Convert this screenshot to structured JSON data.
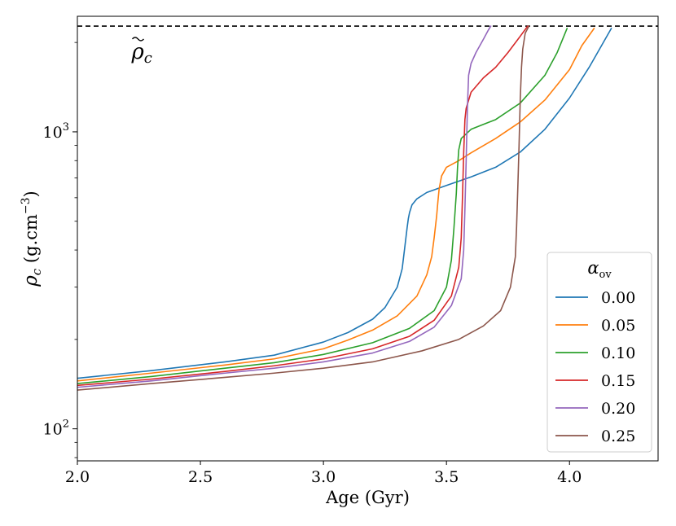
{
  "chart_data": {
    "type": "line",
    "title": "",
    "xlabel": "Age (Gyr)",
    "ylabel_symbol": "ρ",
    "ylabel_sub": "c",
    "ylabel_units_pre": " (g.cm",
    "ylabel_units_exp": "−3",
    "ylabel_units_post": ")",
    "xlim": [
      2.0,
      4.36
    ],
    "ylim": [
      78,
      2450
    ],
    "yscale": "log",
    "grid": false,
    "legend_placement": "lower-right",
    "legend_title": "α",
    "legend_title_sub": "ov",
    "x_ticks": [
      "2.0",
      "2.5",
      "3.0",
      "3.5",
      "4.0"
    ],
    "y_ticks": [
      {
        "base": "10",
        "exp": "2",
        "value": 100
      },
      {
        "base": "10",
        "exp": "3",
        "value": 1000
      }
    ],
    "reference_line": {
      "value": 2270,
      "style": "dashed",
      "color": "#000000"
    },
    "reference_label": {
      "symbol": "ρ",
      "sub": "c",
      "x": 2.22,
      "y": 1880
    },
    "series": [
      {
        "name": "0.00",
        "color": "#1f77b4",
        "x": [
          2.0,
          2.3,
          2.6,
          2.8,
          3.0,
          3.1,
          3.2,
          3.25,
          3.3,
          3.32,
          3.33,
          3.34,
          3.345,
          3.35,
          3.36,
          3.38,
          3.42,
          3.5,
          3.6,
          3.7,
          3.8,
          3.9,
          4.0,
          4.08,
          4.13,
          4.17
        ],
        "y": [
          148,
          157,
          168,
          177,
          196,
          211,
          234,
          256,
          300,
          346,
          405,
          475,
          510,
          535,
          568,
          595,
          625,
          660,
          705,
          760,
          855,
          1020,
          1300,
          1650,
          1950,
          2230
        ]
      },
      {
        "name": "0.05",
        "color": "#ff7f0e",
        "x": [
          2.0,
          2.3,
          2.6,
          2.8,
          3.0,
          3.1,
          3.2,
          3.3,
          3.38,
          3.42,
          3.44,
          3.45,
          3.46,
          3.465,
          3.47,
          3.48,
          3.5,
          3.55,
          3.6,
          3.7,
          3.8,
          3.9,
          4.0,
          4.05,
          4.1
        ],
        "y": [
          145,
          154,
          164,
          172,
          186,
          199,
          215,
          240,
          280,
          330,
          380,
          440,
          520,
          580,
          640,
          710,
          760,
          800,
          850,
          950,
          1080,
          1280,
          1620,
          1950,
          2230
        ]
      },
      {
        "name": "0.10",
        "color": "#2ca02c",
        "x": [
          2.0,
          2.3,
          2.6,
          2.8,
          3.0,
          3.2,
          3.35,
          3.45,
          3.5,
          3.52,
          3.53,
          3.54,
          3.545,
          3.55,
          3.56,
          3.6,
          3.65,
          3.7,
          3.8,
          3.9,
          3.95,
          3.99
        ],
        "y": [
          142,
          150,
          160,
          167,
          178,
          195,
          218,
          250,
          300,
          370,
          470,
          620,
          760,
          870,
          950,
          1020,
          1060,
          1100,
          1250,
          1550,
          1850,
          2230
        ]
      },
      {
        "name": "0.15",
        "color": "#d62728",
        "x": [
          2.0,
          2.3,
          2.6,
          2.8,
          3.0,
          3.2,
          3.35,
          3.45,
          3.52,
          3.55,
          3.56,
          3.565,
          3.57,
          3.575,
          3.58,
          3.6,
          3.65,
          3.7,
          3.75,
          3.8,
          3.83
        ],
        "y": [
          140,
          147,
          156,
          163,
          172,
          186,
          205,
          232,
          280,
          350,
          440,
          600,
          850,
          1100,
          1200,
          1360,
          1520,
          1650,
          1850,
          2100,
          2270
        ]
      },
      {
        "name": "0.20",
        "color": "#9467bd",
        "x": [
          2.0,
          2.3,
          2.6,
          2.8,
          3.0,
          3.2,
          3.35,
          3.45,
          3.52,
          3.56,
          3.57,
          3.575,
          3.58,
          3.585,
          3.59,
          3.6,
          3.62,
          3.65,
          3.67,
          3.68
        ],
        "y": [
          138,
          145,
          154,
          160,
          168,
          180,
          197,
          220,
          260,
          320,
          400,
          550,
          800,
          1200,
          1550,
          1700,
          1850,
          2050,
          2200,
          2270
        ]
      },
      {
        "name": "0.25",
        "color": "#8c564b",
        "x": [
          2.0,
          2.3,
          2.6,
          2.8,
          3.0,
          3.2,
          3.4,
          3.55,
          3.65,
          3.72,
          3.76,
          3.78,
          3.785,
          3.79,
          3.795,
          3.8,
          3.805,
          3.81,
          3.82,
          3.835
        ],
        "y": [
          135,
          142,
          149,
          154,
          160,
          168,
          183,
          200,
          222,
          250,
          300,
          380,
          480,
          650,
          900,
          1300,
          1650,
          1900,
          2150,
          2270
        ]
      }
    ]
  }
}
